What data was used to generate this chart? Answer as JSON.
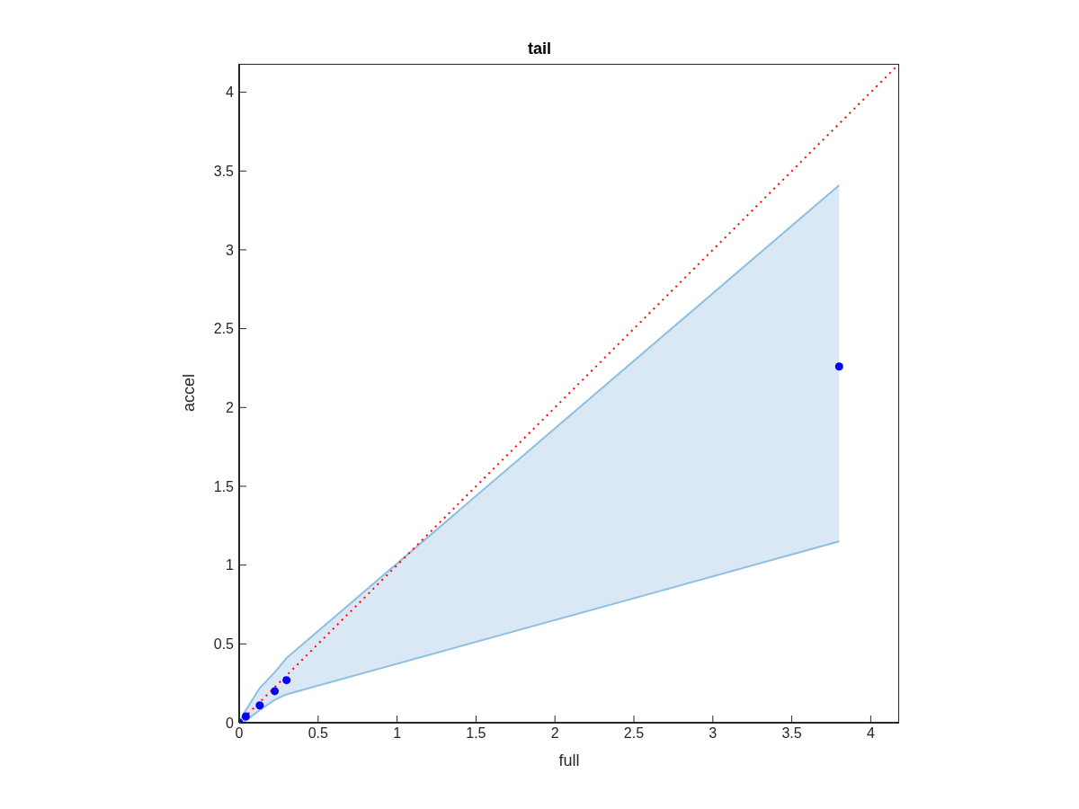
{
  "chart_data": {
    "type": "scatter",
    "title": "tail",
    "xlabel": "full",
    "ylabel": "accel",
    "xlim": [
      0,
      4.18
    ],
    "ylim": [
      0,
      4.18
    ],
    "xticks": [
      0,
      0.5,
      1,
      1.5,
      2,
      2.5,
      3,
      3.5,
      4
    ],
    "yticks": [
      0,
      0.5,
      1,
      1.5,
      2,
      2.5,
      3,
      3.5,
      4
    ],
    "grid": false,
    "legend": false,
    "series": [
      {
        "type": "line",
        "color": "#8cc0e3",
        "marker": "none",
        "x": [
          0,
          0.042,
          0.13,
          0.225,
          0.3,
          3.8
        ],
        "values": [
          0,
          0.08,
          0.22,
          0.32,
          0.41,
          3.41
        ]
      },
      {
        "type": "line",
        "color": "#8cc0e3",
        "marker": "none",
        "x": [
          0,
          0.042,
          0.13,
          0.225,
          0.3,
          3.8
        ],
        "values": [
          0,
          0.013,
          0.08,
          0.145,
          0.18,
          1.15
        ]
      },
      {
        "color": "#0000ff",
        "marker": "circle",
        "x": [
          0,
          0.042,
          0.13,
          0.225,
          0.3,
          3.8
        ],
        "values": [
          0,
          0.04,
          0.11,
          0.2,
          0.27,
          2.26
        ],
        "lower": [
          0,
          0.013,
          0.08,
          0.145,
          0.18,
          1.15
        ],
        "upper": [
          0,
          0.08,
          0.22,
          0.32,
          0.41,
          3.41
        ]
      },
      {
        "type": "line",
        "color": "#ff0000",
        "marker": "none",
        "line_style": "dotted",
        "x": [
          0,
          4.18
        ],
        "values": [
          0,
          4.18
        ]
      }
    ]
  }
}
